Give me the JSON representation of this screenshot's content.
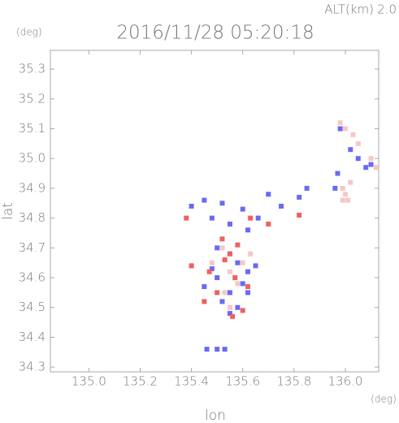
{
  "chart_data": {
    "type": "scatter",
    "title": "2016/11/28 05:20:18",
    "altitude_label": "ALT(km)",
    "altitude": "2.0",
    "y_unit": "(deg)",
    "x_unit": "(deg)",
    "xlabel": "lon",
    "ylabel": "lat",
    "xlim": [
      134.85,
      136.13
    ],
    "ylim": [
      34.284,
      35.363
    ],
    "xticks": [
      {
        "value": 135,
        "label": "135.0"
      },
      135.2,
      135.4,
      135.6,
      135.8,
      {
        "value": 136,
        "label": "136.0"
      }
    ],
    "yticks": [
      34.3,
      34.4,
      34.5,
      34.6,
      34.7,
      34.8,
      34.9,
      {
        "value": 35,
        "label": "35.0"
      },
      35.1,
      35.2,
      35.3
    ],
    "series": [
      {
        "color": "#f4c8c8",
        "x": [
          135.5,
          135.55,
          135.6,
          135.53,
          135.58,
          135.48,
          135.63,
          135.55,
          135.52,
          135.99,
          136.0,
          136.02,
          135.99,
          136.01,
          136.03,
          136.05,
          136.1,
          136.12,
          135.98,
          136.0
        ],
        "values": [
          34.6,
          34.62,
          34.65,
          34.55,
          34.58,
          34.65,
          34.68,
          34.5,
          34.7,
          34.9,
          34.88,
          34.92,
          34.86,
          34.86,
          35.08,
          35.05,
          35.0,
          34.97,
          35.12,
          35.1
        ]
      },
      {
        "color": "#6a6af0",
        "x": [
          135.4,
          135.45,
          135.48,
          135.52,
          135.55,
          135.6,
          135.62,
          135.66,
          135.7,
          135.75,
          135.82,
          135.85,
          135.5,
          135.55,
          135.58,
          135.62,
          135.5,
          135.45,
          135.55,
          135.6,
          135.65,
          135.52,
          135.48,
          135.58,
          135.62,
          135.55,
          135.5,
          135.46,
          135.53,
          135.98,
          136.02,
          136.05,
          136.08,
          135.97,
          136.1,
          135.96
        ],
        "values": [
          34.84,
          34.86,
          34.8,
          34.85,
          34.78,
          34.83,
          34.76,
          34.8,
          34.88,
          34.84,
          34.87,
          34.9,
          34.7,
          34.68,
          34.65,
          34.62,
          34.6,
          34.57,
          34.55,
          34.58,
          34.64,
          34.52,
          34.63,
          34.5,
          34.55,
          34.48,
          34.36,
          34.36,
          34.36,
          35.1,
          35.03,
          35.0,
          34.97,
          34.95,
          34.98,
          34.9
        ]
      },
      {
        "color": "#f06060",
        "x": [
          135.38,
          135.52,
          135.58,
          135.63,
          135.7,
          135.82,
          135.47,
          135.53,
          135.57,
          135.45,
          135.6,
          135.56,
          135.5,
          135.4,
          135.62,
          135.55
        ],
        "values": [
          34.8,
          34.73,
          34.71,
          34.8,
          34.78,
          34.81,
          34.62,
          34.66,
          34.6,
          34.52,
          34.49,
          34.47,
          34.55,
          34.64,
          34.57,
          34.68
        ]
      }
    ]
  }
}
